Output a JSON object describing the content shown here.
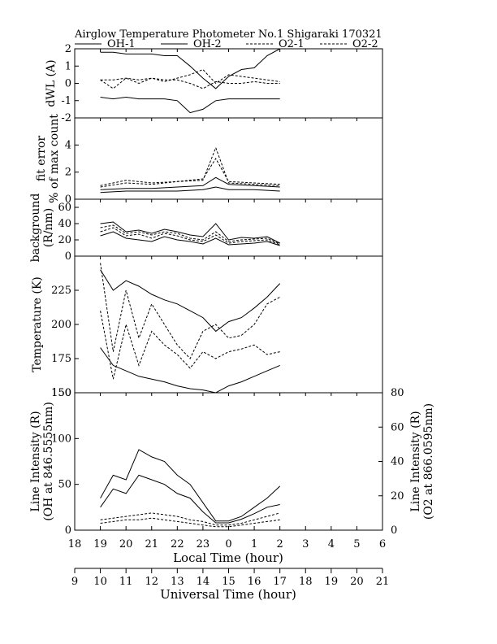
{
  "chart_data": {
    "type": "line",
    "title": "Airglow Temperature Photometer No.1   Shigaraki   170321",
    "legend": {
      "placement": "top",
      "entries": [
        {
          "name": "OH-1",
          "style": "solid"
        },
        {
          "name": "OH-2",
          "style": "solid"
        },
        {
          "name": "O2-1",
          "style": "dashed"
        },
        {
          "name": "O2-2",
          "style": "dashed"
        }
      ]
    },
    "x_local": {
      "label": "Local Time (hour)",
      "ticks": [
        "18",
        "19",
        "20",
        "21",
        "22",
        "23",
        "0",
        "1",
        "2",
        "3",
        "4",
        "5",
        "6"
      ],
      "range": [
        18,
        30
      ]
    },
    "x_ut": {
      "label": "Universal Time (hour)",
      "ticks": [
        "9",
        "10",
        "11",
        "12",
        "13",
        "14",
        "15",
        "16",
        "17",
        "18",
        "19",
        "20",
        "21"
      ],
      "range": [
        9,
        21
      ]
    },
    "panels": [
      {
        "id": "dwl",
        "ylabel": "dWL (A)",
        "ylim": [
          -2,
          2
        ],
        "yticks": [
          "2",
          "1",
          "0",
          "-1",
          "-2"
        ],
        "series": [
          {
            "name": "OH-1",
            "style": "solid",
            "x": [
              19.0,
              19.5,
              20.0,
              20.5,
              21.0,
              21.5,
              22.0,
              22.5,
              23.0,
              23.5,
              24.0,
              24.5,
              25.0,
              25.5,
              26.0
            ],
            "y": [
              1.8,
              1.8,
              1.7,
              1.7,
              1.7,
              1.6,
              1.6,
              1.0,
              0.3,
              -0.3,
              0.4,
              0.8,
              0.9,
              1.6,
              2.0
            ]
          },
          {
            "name": "OH-2",
            "style": "solid",
            "x": [
              19.0,
              19.5,
              20.0,
              20.5,
              21.0,
              21.5,
              22.0,
              22.5,
              23.0,
              23.5,
              24.0,
              24.5,
              25.0,
              25.5,
              26.0
            ],
            "y": [
              -0.8,
              -0.9,
              -0.8,
              -0.9,
              -0.9,
              -0.9,
              -1.0,
              -1.7,
              -1.5,
              -1.0,
              -0.9,
              -0.9,
              -0.9,
              -0.9,
              -0.9
            ]
          },
          {
            "name": "O2-1",
            "style": "dashed",
            "x": [
              19.0,
              19.5,
              20.0,
              20.5,
              21.0,
              21.5,
              22.0,
              22.5,
              23.0,
              23.5,
              24.0,
              24.5,
              25.0,
              25.5,
              26.0
            ],
            "y": [
              0.2,
              0.2,
              0.3,
              0.2,
              0.3,
              0.2,
              0.2,
              0.0,
              -0.3,
              0.1,
              0.0,
              0.0,
              0.1,
              0.0,
              0.0
            ]
          },
          {
            "name": "O2-2",
            "style": "dashed",
            "x": [
              19.0,
              19.5,
              20.0,
              20.5,
              21.0,
              21.5,
              22.0,
              22.5,
              23.0,
              23.5,
              24.0,
              24.5,
              25.0,
              25.5,
              26.0
            ],
            "y": [
              0.2,
              -0.3,
              0.3,
              0.0,
              0.3,
              0.1,
              0.3,
              0.5,
              0.8,
              0.0,
              0.5,
              0.4,
              0.3,
              0.2,
              0.1
            ]
          }
        ]
      },
      {
        "id": "fit",
        "ylabel": "fit error",
        "ylabel2": "% of max count",
        "ylim": [
          0,
          6
        ],
        "yticks": [
          "0",
          "2",
          "4"
        ],
        "series": [
          {
            "name": "OH-1",
            "style": "solid",
            "x": [
              19.0,
              20.0,
              21.0,
              22.0,
              23.0,
              23.5,
              24.0,
              25.0,
              26.0
            ],
            "y": [
              0.7,
              0.8,
              0.8,
              0.9,
              1.0,
              1.6,
              1.1,
              1.0,
              0.9
            ]
          },
          {
            "name": "OH-2",
            "style": "solid",
            "x": [
              19.0,
              20.0,
              21.0,
              22.0,
              23.0,
              23.5,
              24.0,
              25.0,
              26.0
            ],
            "y": [
              0.5,
              0.6,
              0.6,
              0.6,
              0.7,
              0.9,
              0.7,
              0.7,
              0.6
            ]
          },
          {
            "name": "O2-1",
            "style": "dashed",
            "x": [
              19.0,
              20.0,
              21.0,
              22.0,
              23.0,
              23.5,
              24.0,
              25.0,
              26.0
            ],
            "y": [
              0.9,
              1.2,
              1.1,
              1.3,
              1.4,
              3.8,
              1.2,
              1.1,
              1.0
            ]
          },
          {
            "name": "O2-2",
            "style": "dashed",
            "x": [
              19.0,
              20.0,
              21.0,
              22.0,
              23.0,
              23.5,
              24.0,
              25.0,
              26.0
            ],
            "y": [
              1.0,
              1.4,
              1.2,
              1.3,
              1.5,
              3.0,
              1.3,
              1.2,
              1.1
            ]
          }
        ]
      },
      {
        "id": "bg",
        "ylabel": "background",
        "ylabel2": "(R/nm)",
        "ylim": [
          0,
          70
        ],
        "yticks": [
          "0",
          "20",
          "40",
          "60"
        ],
        "series": [
          {
            "name": "OH-1",
            "style": "solid",
            "x": [
              19.0,
              19.5,
              20.0,
              20.5,
              21.0,
              21.5,
              22.0,
              22.5,
              23.0,
              23.5,
              24.0,
              24.5,
              25.0,
              25.5,
              26.0
            ],
            "y": [
              40,
              42,
              30,
              32,
              28,
              33,
              30,
              26,
              24,
              40,
              20,
              23,
              22,
              24,
              16
            ]
          },
          {
            "name": "OH-2",
            "style": "solid",
            "x": [
              19.0,
              19.5,
              20.0,
              20.5,
              21.0,
              21.5,
              22.0,
              22.5,
              23.0,
              23.5,
              24.0,
              24.5,
              25.0,
              25.5,
              26.0
            ],
            "y": [
              25,
              30,
              22,
              20,
              18,
              24,
              20,
              18,
              15,
              22,
              14,
              15,
              16,
              18,
              13
            ]
          },
          {
            "name": "O2-1",
            "style": "dashed",
            "x": [
              19.0,
              19.5,
              20.0,
              20.5,
              21.0,
              21.5,
              22.0,
              22.5,
              23.0,
              23.5,
              24.0,
              24.5,
              25.0,
              25.5,
              26.0
            ],
            "y": [
              35,
              38,
              28,
              30,
              26,
              30,
              28,
              22,
              20,
              30,
              18,
              20,
              21,
              22,
              15
            ]
          },
          {
            "name": "O2-2",
            "style": "dashed",
            "x": [
              19.0,
              19.5,
              20.0,
              20.5,
              21.0,
              21.5,
              22.0,
              22.5,
              23.0,
              23.5,
              24.0,
              24.5,
              25.0,
              25.5,
              26.0
            ],
            "y": [
              30,
              35,
              25,
              27,
              22,
              28,
              25,
              20,
              18,
              26,
              16,
              18,
              19,
              20,
              14
            ]
          }
        ]
      },
      {
        "id": "temp",
        "ylabel": "Temperature (K)",
        "ylim": [
          150,
          250
        ],
        "yticks": [
          "150",
          "175",
          "200",
          "225"
        ],
        "series": [
          {
            "name": "OH-1",
            "style": "solid",
            "x": [
              19.0,
              19.5,
              20.0,
              20.5,
              21.0,
              21.5,
              22.0,
              22.5,
              23.0,
              23.5,
              24.0,
              24.5,
              25.0,
              25.5,
              26.0
            ],
            "y": [
              240,
              225,
              232,
              228,
              222,
              218,
              215,
              210,
              205,
              195,
              202,
              205,
              212,
              220,
              230
            ]
          },
          {
            "name": "OH-2",
            "style": "solid",
            "x": [
              19.0,
              19.5,
              20.0,
              20.5,
              21.0,
              21.5,
              22.0,
              22.5,
              23.0,
              23.5,
              24.0,
              24.5,
              25.0,
              25.5,
              26.0
            ],
            "y": [
              183,
              170,
              166,
              162,
              160,
              158,
              155,
              153,
              152,
              150,
              155,
              158,
              162,
              166,
              170
            ]
          },
          {
            "name": "O2-1",
            "style": "dashed",
            "x": [
              19.0,
              19.5,
              20.0,
              20.5,
              21.0,
              21.5,
              22.0,
              22.5,
              23.0,
              23.5,
              24.0,
              24.5,
              25.0,
              25.5,
              26.0
            ],
            "y": [
              245,
              180,
              225,
              190,
              215,
              200,
              185,
              175,
              195,
              200,
              190,
              192,
              200,
              215,
              220
            ]
          },
          {
            "name": "O2-2",
            "style": "dashed",
            "x": [
              19.0,
              19.5,
              20.0,
              20.5,
              21.0,
              21.5,
              22.0,
              22.5,
              23.0,
              23.5,
              24.0,
              24.5,
              25.0,
              25.5,
              26.0
            ],
            "y": [
              210,
              160,
              200,
              170,
              195,
              185,
              178,
              168,
              180,
              175,
              180,
              182,
              185,
              178,
              180
            ]
          }
        ]
      },
      {
        "id": "int",
        "ylabel": "Line Intensity (R)",
        "ylabel2": "(OH at 846.5555nm)",
        "ylim": [
          0,
          150
        ],
        "yticks": [
          "0",
          "50",
          "100",
          "150"
        ],
        "right": {
          "ylabel": "Line Intensity (R)",
          "ylabel2": "(O2 at 866.0595nm)",
          "ylim": [
            0,
            80
          ],
          "yticks": [
            "0",
            "20",
            "40",
            "60",
            "80"
          ]
        },
        "series": [
          {
            "name": "OH-1",
            "style": "solid",
            "axis": "left",
            "x": [
              19.0,
              19.5,
              20.0,
              20.5,
              21.0,
              21.5,
              22.0,
              22.5,
              23.0,
              23.5,
              24.0,
              24.5,
              25.0,
              25.5,
              26.0
            ],
            "y": [
              35,
              60,
              55,
              88,
              80,
              75,
              60,
              50,
              30,
              10,
              10,
              15,
              25,
              35,
              48
            ]
          },
          {
            "name": "OH-2",
            "style": "solid",
            "axis": "left",
            "x": [
              19.0,
              19.5,
              20.0,
              20.5,
              21.0,
              21.5,
              22.0,
              22.5,
              23.0,
              23.5,
              24.0,
              24.5,
              25.0,
              25.5,
              26.0
            ],
            "y": [
              25,
              45,
              40,
              60,
              55,
              50,
              40,
              35,
              20,
              8,
              8,
              12,
              18,
              25,
              28
            ]
          },
          {
            "name": "O2-1",
            "style": "dashed",
            "axis": "right",
            "x": [
              19.0,
              19.5,
              20.0,
              20.5,
              21.0,
              21.5,
              22.0,
              22.5,
              23.0,
              23.5,
              24.0,
              24.5,
              25.0,
              25.5,
              26.0
            ],
            "y": [
              4,
              5,
              6,
              6,
              7,
              6,
              5,
              4,
              3,
              2,
              2,
              3,
              4,
              5,
              6
            ]
          },
          {
            "name": "O2-2",
            "style": "dashed",
            "axis": "right",
            "x": [
              19.0,
              19.5,
              20.0,
              20.5,
              21.0,
              21.5,
              22.0,
              22.5,
              23.0,
              23.5,
              24.0,
              24.5,
              25.0,
              25.5,
              26.0
            ],
            "y": [
              6,
              7,
              8,
              9,
              10,
              9,
              8,
              6,
              5,
              3,
              3,
              4,
              6,
              8,
              10
            ]
          }
        ]
      }
    ]
  }
}
